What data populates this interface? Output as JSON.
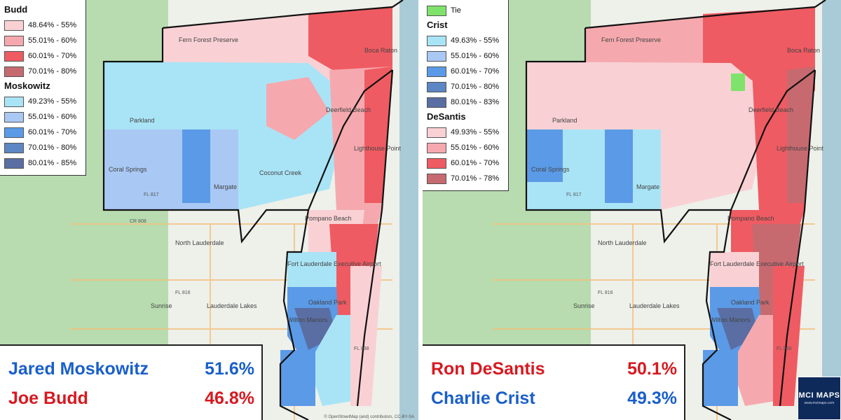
{
  "left": {
    "legend_groups": [
      {
        "title": "Budd",
        "items": [
          {
            "label": "48.64% - 55%",
            "color": "#f9d1d4"
          },
          {
            "label": "55.01% - 60%",
            "color": "#f5a9ae"
          },
          {
            "label": "60.01% - 70%",
            "color": "#ef5b62"
          },
          {
            "label": "70.01% - 80%",
            "color": "#c76a70"
          }
        ]
      },
      {
        "title": "Moskowitz",
        "items": [
          {
            "label": "49.23% - 55%",
            "color": "#a9e4f6"
          },
          {
            "label": "55.01% - 60%",
            "color": "#a9c8f4"
          },
          {
            "label": "60.01% - 70%",
            "color": "#5b9ae6"
          },
          {
            "label": "70.01% - 80%",
            "color": "#5c86c4"
          },
          {
            "label": "80.01% - 85%",
            "color": "#5a6ea3"
          }
        ]
      }
    ],
    "results": [
      {
        "name": "Jared Moskowitz",
        "pct": "51.6%",
        "color": "#1a5fc9"
      },
      {
        "name": "Joe Budd",
        "pct": "46.8%",
        "color": "#d71920"
      }
    ]
  },
  "right": {
    "tie": {
      "label": "Tie",
      "color": "#7fe36b"
    },
    "legend_groups": [
      {
        "title": "Crist",
        "items": [
          {
            "label": "49.63% - 55%",
            "color": "#a9e4f6"
          },
          {
            "label": "55.01% - 60%",
            "color": "#a9c8f4"
          },
          {
            "label": "60.01% - 70%",
            "color": "#5b9ae6"
          },
          {
            "label": "70.01% - 80%",
            "color": "#5c86c4"
          },
          {
            "label": "80.01% - 83%",
            "color": "#5a6ea3"
          }
        ]
      },
      {
        "title": "DeSantis",
        "items": [
          {
            "label": "49.93% - 55%",
            "color": "#f9d1d4"
          },
          {
            "label": "55.01% - 60%",
            "color": "#f5a9ae"
          },
          {
            "label": "60.01% - 70%",
            "color": "#ef5b62"
          },
          {
            "label": "70.01% - 78%",
            "color": "#c76a70"
          }
        ]
      }
    ],
    "results": [
      {
        "name": "Ron DeSantis",
        "pct": "50.1%",
        "color": "#d71920"
      },
      {
        "name": "Charlie Crist",
        "pct": "49.3%",
        "color": "#1a5fc9"
      }
    ]
  },
  "map_labels": {
    "places": [
      "Boca Raton",
      "Deerfield Beach",
      "Parkland",
      "Coral Springs",
      "Margate",
      "Coconut Creek",
      "Pompano Beach",
      "North Lauderdale",
      "Fort Lauderdale Executive Airport",
      "Oakland Park",
      "Wilton Manors",
      "Sunrise",
      "Lauderdale Lakes",
      "Lighthouse Point",
      "Fern Forest Preserve"
    ],
    "roads": [
      "FL 817",
      "FL 816",
      "FL 869",
      "FL 838",
      "CR 808"
    ]
  },
  "logo": {
    "text": "MCI MAPS",
    "sub": "www.mcimaps.com"
  },
  "attribution": "© OpenStreetMap (and) contributors, CC-BY-SA",
  "colors": {
    "water": "#a9cbd8",
    "land": "#eef0ea",
    "green": "#b8dcb0",
    "boundary": "#111111"
  }
}
